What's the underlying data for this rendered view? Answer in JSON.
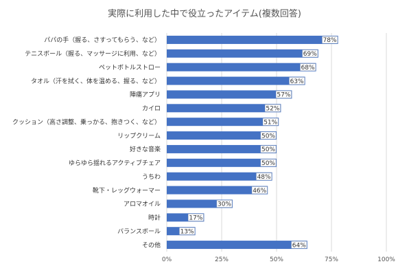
{
  "chart_data": {
    "type": "bar",
    "orientation": "horizontal",
    "title": "実際に利用した中で役立ったアイテム(複数回答)",
    "categories": [
      "パパの手（握る、さすってもらう、など）",
      "テニスボール（握る、マッサージに利用、など）",
      "ペットボトルストロー",
      "タオル（汗を拭く、体を温める、握る、など）",
      "陣痛アプリ",
      "カイロ",
      "クッション（高さ調整、乗っかる、抱きつく、など）",
      "リップクリーム",
      "好きな音楽",
      "ゆらゆら揺れるアクティブチェア",
      "うちわ",
      "靴下・レッグウォーマー",
      "アロマオイル",
      "時計",
      "バランスボール",
      "その他"
    ],
    "values": [
      78,
      69,
      68,
      63,
      57,
      52,
      51,
      50,
      50,
      50,
      48,
      46,
      30,
      17,
      13,
      64
    ],
    "value_labels": [
      "78%",
      "69%",
      "68%",
      "63%",
      "57%",
      "52%",
      "51%",
      "50%",
      "50%",
      "50%",
      "48%",
      "46%",
      "30%",
      "17%",
      "13%",
      "64%"
    ],
    "xlim": [
      0,
      100
    ],
    "xticks": [
      0,
      25,
      50,
      75,
      100
    ],
    "xtick_labels": [
      "0%",
      "25%",
      "50%",
      "75%",
      "100%"
    ],
    "grid": true,
    "bar_color": "#4472c4",
    "grid_color": "#d9d9d9"
  }
}
